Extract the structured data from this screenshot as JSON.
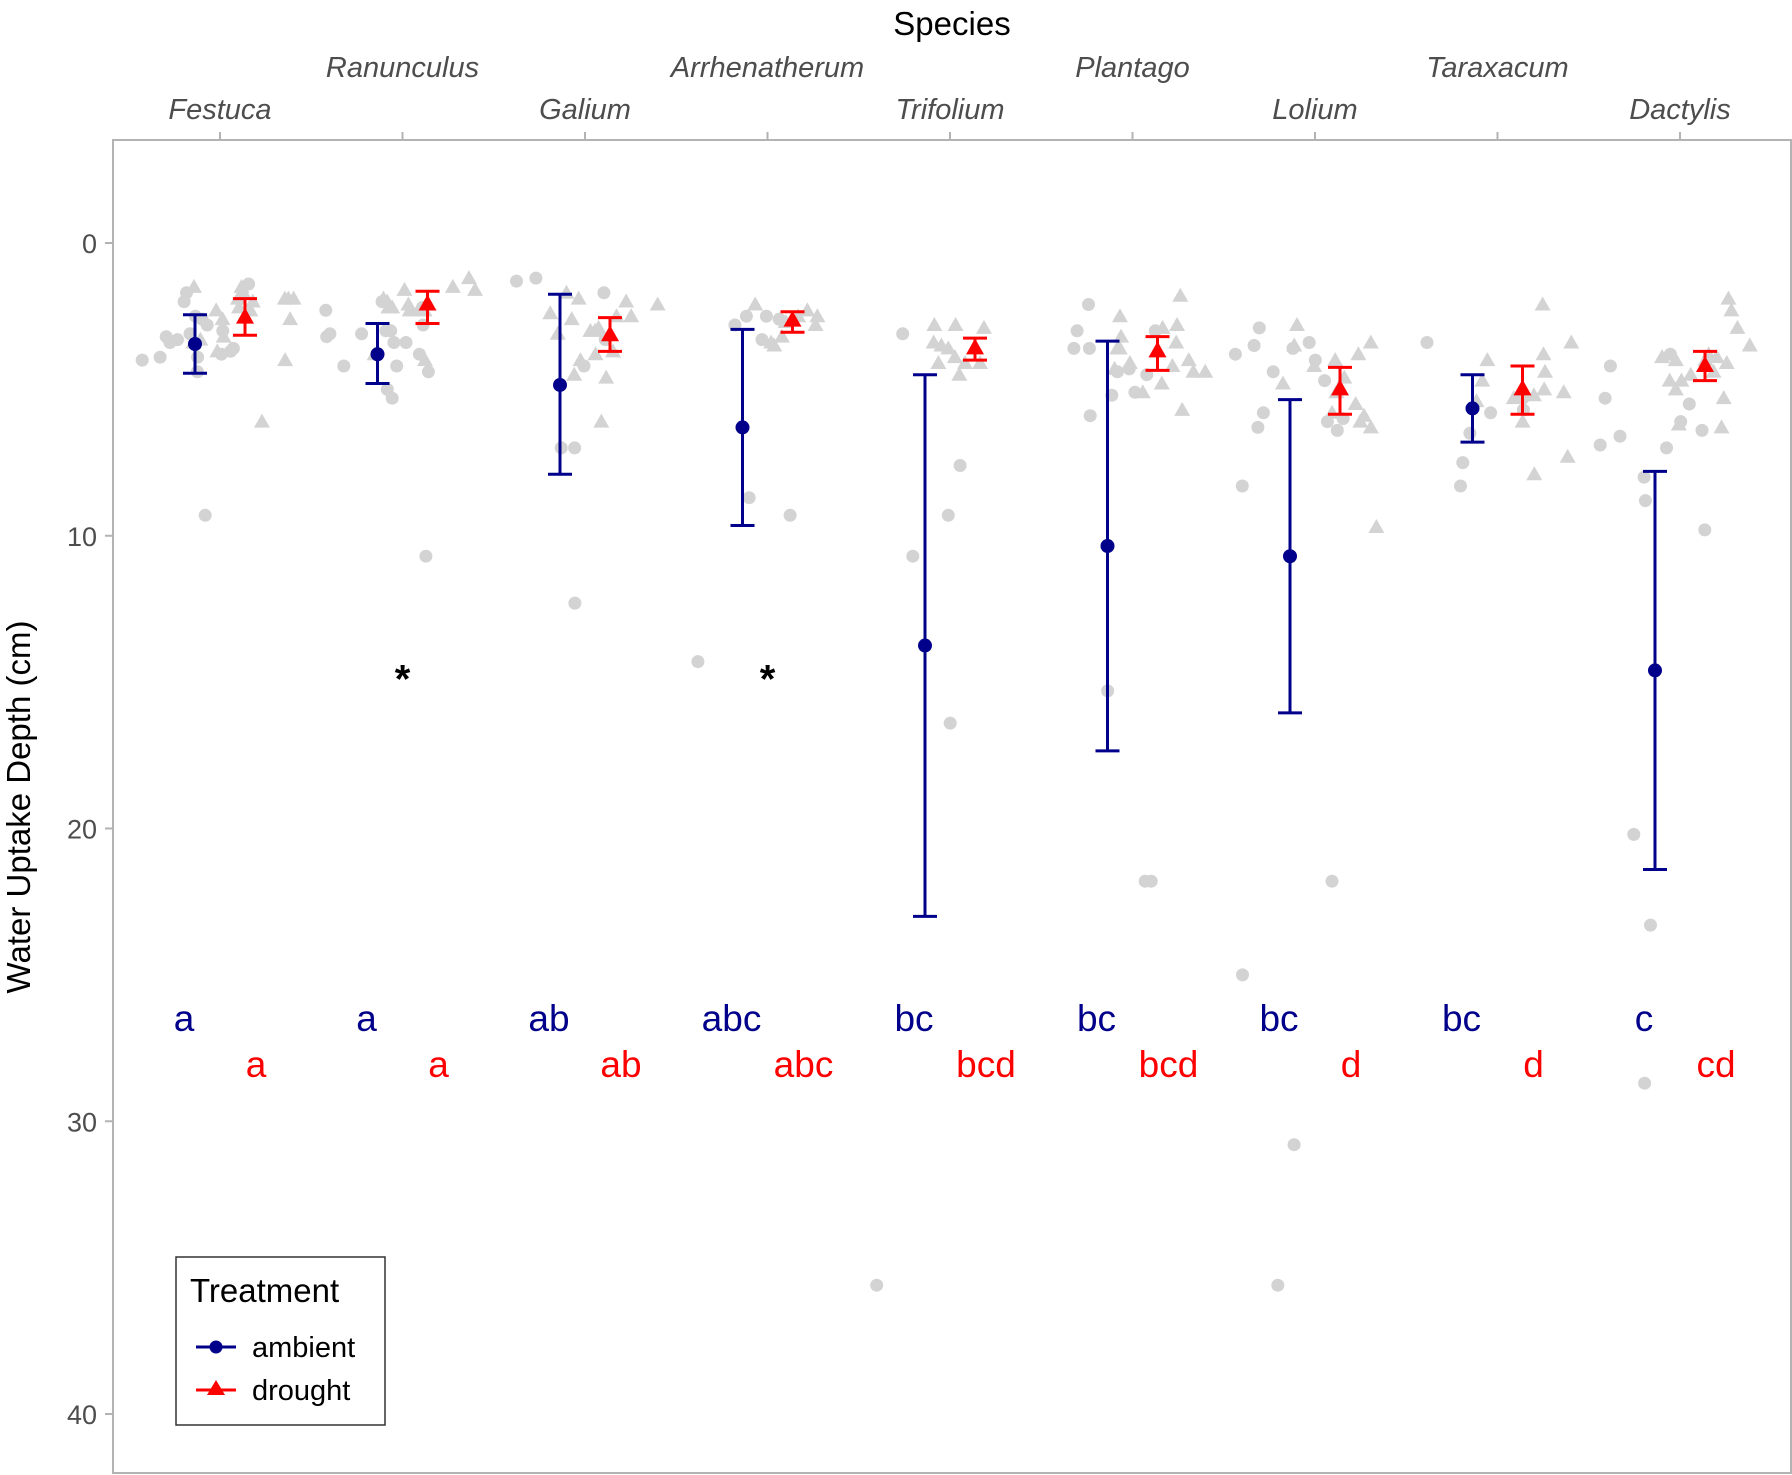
{
  "chart_data": {
    "type": "scatter",
    "title": "",
    "xlabel": "Species",
    "ylabel": "Water Uptake Depth (cm)",
    "x_axis_position": "top",
    "y_reversed": true,
    "ylim": [
      -3.5,
      42
    ],
    "yticks": [
      0,
      10,
      20,
      30,
      40
    ],
    "ytick_labels": [
      "0",
      "10",
      "20",
      "30",
      "40"
    ],
    "grid": false,
    "categories": [
      "Festuca",
      "Ranunculus",
      "Galium",
      "Arrhenatherum",
      "Trifolium",
      "Plantago",
      "Lolium",
      "Taraxacum",
      "Dactylis"
    ],
    "legend": {
      "title": "Treatment",
      "placement": "bottom-left",
      "entries": [
        {
          "label": "ambient",
          "color": "#00008b",
          "marker": "circle"
        },
        {
          "label": "drought",
          "color": "#ff0000",
          "marker": "triangle"
        }
      ]
    },
    "series": [
      {
        "name": "ambient",
        "color": "#00008b",
        "marker": "circle",
        "means": [
          3.45,
          3.8,
          4.85,
          6.3,
          13.75,
          10.35,
          10.7,
          5.65,
          14.6
        ],
        "lower": [
          2.45,
          2.75,
          1.75,
          2.95,
          4.5,
          3.35,
          5.35,
          4.5,
          7.8
        ],
        "upper": [
          4.45,
          4.8,
          7.9,
          9.65,
          23.0,
          17.35,
          16.05,
          6.8,
          21.4
        ],
        "letters": [
          "a",
          "a",
          "ab",
          "abc",
          "bc",
          "bc",
          "bc",
          "bc",
          "c"
        ]
      },
      {
        "name": "drought",
        "color": "#ff0000",
        "marker": "triangle",
        "means": [
          2.55,
          2.1,
          3.15,
          2.65,
          3.6,
          3.7,
          5.0,
          5.0,
          4.2
        ],
        "lower": [
          1.9,
          1.65,
          2.55,
          2.35,
          3.25,
          3.2,
          4.25,
          4.2,
          3.7
        ],
        "upper": [
          3.15,
          2.75,
          3.7,
          3.05,
          4.0,
          4.35,
          5.85,
          5.85,
          4.7
        ],
        "letters": [
          "a",
          "a",
          "ab",
          "abc",
          "bcd",
          "bcd",
          "d",
          "d",
          "cd"
        ]
      }
    ],
    "significance_markers": [
      {
        "category": "Ranunculus",
        "label": "*",
        "y": 14.6
      },
      {
        "category": "Arrhenatherum",
        "label": "*",
        "y": 14.6
      }
    ],
    "raw_points_color": "#d3d3d3",
    "raw_points": [
      {
        "category": "Festuca",
        "ambient": [
          3.9,
          3.8,
          2.6,
          3.1,
          3.4,
          3.7,
          3.0,
          2.5,
          3.9,
          4.4,
          4.0,
          9.3,
          2.8,
          2.0,
          3.6,
          3.3,
          1.7,
          3.2,
          1.4
        ],
        "drought": [
          1.9,
          1.9,
          3.2,
          2.2,
          3.4,
          4.0,
          3.7,
          2.6,
          2.0,
          2.3,
          1.5,
          2.3,
          1.9,
          2.6,
          3.3,
          6.1,
          1.5,
          1.9,
          1.7
        ]
      },
      {
        "category": "Ranunculus",
        "ambient": [
          5.0,
          3.2,
          3.1,
          3.8,
          4.2,
          2.2,
          3.4,
          3.4,
          3.1,
          4.2,
          10.7,
          3.0,
          2.0,
          5.3,
          3.0,
          4.4,
          2.8,
          2.3
        ],
        "drought": [
          2.3,
          1.2,
          2.3,
          2.2,
          2.0,
          1.6,
          1.6,
          2.2,
          4.0,
          3.8,
          2.3,
          2.1,
          1.9,
          1.5
        ]
      },
      {
        "category": "Galium",
        "ambient": [
          7.0,
          7.0,
          3.3,
          4.2,
          1.3,
          1.2,
          1.7,
          12.3
        ],
        "drought": [
          1.9,
          3.1,
          4.6,
          4.5,
          6.1,
          3.8,
          2.4,
          3.0,
          2.1,
          3.7,
          2.6,
          2.9,
          2.0,
          3.0,
          1.7,
          2.5,
          2.5,
          4.0
        ]
      },
      {
        "category": "Arrhenatherum",
        "ambient": [
          8.7,
          9.3,
          2.5,
          2.5,
          2.8,
          2.6,
          3.3,
          14.3
        ],
        "drought": [
          2.5,
          2.3,
          2.7,
          2.8,
          2.5,
          3.5,
          3.4,
          2.1,
          3.2
        ]
      },
      {
        "category": "Trifolium",
        "ambient": [
          9.3,
          10.7,
          16.4,
          3.1,
          35.6,
          7.6
        ],
        "drought": [
          2.9,
          4.1,
          2.8,
          4.1,
          4.1,
          3.4,
          4.5,
          3.6,
          2.8,
          3.5,
          3.9
        ]
      },
      {
        "category": "Plantago",
        "ambient": [
          2.1,
          21.8,
          3.6,
          3.6,
          3.0,
          3.0,
          4.3,
          4.4,
          15.3,
          21.8,
          4.5,
          5.2,
          5.1,
          5.9
        ],
        "drought": [
          2.9,
          2.8,
          3.2,
          3.6,
          4.2,
          5.1,
          2.5,
          4.1,
          4.4,
          5.7,
          4.4,
          4.8,
          3.4,
          1.8,
          3.6,
          4.0,
          4.3
        ]
      },
      {
        "category": "Lolium",
        "ambient": [
          21.8,
          3.4,
          6.1,
          5.8,
          6.0,
          8.3,
          6.4,
          25.0,
          3.5,
          4.0,
          4.4,
          35.6,
          4.7,
          2.9,
          3.6,
          6.3,
          3.8,
          30.8
        ],
        "drought": [
          6.3,
          5.8,
          4.8,
          6.1,
          9.7,
          3.8,
          4.6,
          5.1,
          5.9,
          5.5,
          2.8,
          3.4,
          4.0,
          4.2,
          3.5
        ]
      },
      {
        "category": "Taraxacum",
        "ambient": [
          5.3,
          5.7,
          6.5,
          3.4,
          5.8,
          7.5,
          8.3
        ],
        "drought": [
          3.4,
          4.7,
          5.2,
          6.1,
          7.3,
          3.8,
          2.1,
          4.4,
          4.0,
          5.3,
          5.1,
          5.0,
          5.4,
          7.9
        ]
      },
      {
        "category": "Dactylis",
        "ambient": [
          9.8,
          7.0,
          6.9,
          5.3,
          6.6,
          23.3,
          5.5,
          3.8,
          4.2,
          6.4,
          8.8,
          20.2,
          28.7,
          8.0,
          6.1
        ],
        "drought": [
          2.3,
          4.0,
          4.7,
          3.9,
          5.0,
          6.3,
          3.5,
          4.1,
          6.2,
          4.7,
          3.8,
          4.5,
          4.0,
          1.9,
          2.9,
          5.3,
          3.9,
          4.4
        ]
      }
    ]
  }
}
